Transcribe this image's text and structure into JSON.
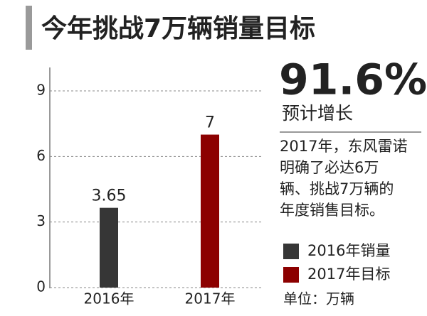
{
  "chart_data": {
    "type": "bar",
    "title": "今年挑战7万辆销量目标",
    "categories": [
      "2016年",
      "2017年"
    ],
    "series": [
      {
        "name": "2016年销量",
        "color": "#363636",
        "values": [
          3.65,
          null
        ]
      },
      {
        "name": "2017年目标",
        "color": "#8c0000",
        "values": [
          null,
          7
        ]
      }
    ],
    "ylim": [
      0,
      9
    ],
    "yticks": [
      0,
      3,
      6,
      9
    ],
    "grid": true,
    "highlight": "91.6%",
    "highlight_caption": "预计增长",
    "note": [
      "2017年，东风雷诺",
      "明确了必达6万",
      "辆、挑战7万辆的",
      "年度销售目标。"
    ],
    "unit": "单位：万辆"
  }
}
